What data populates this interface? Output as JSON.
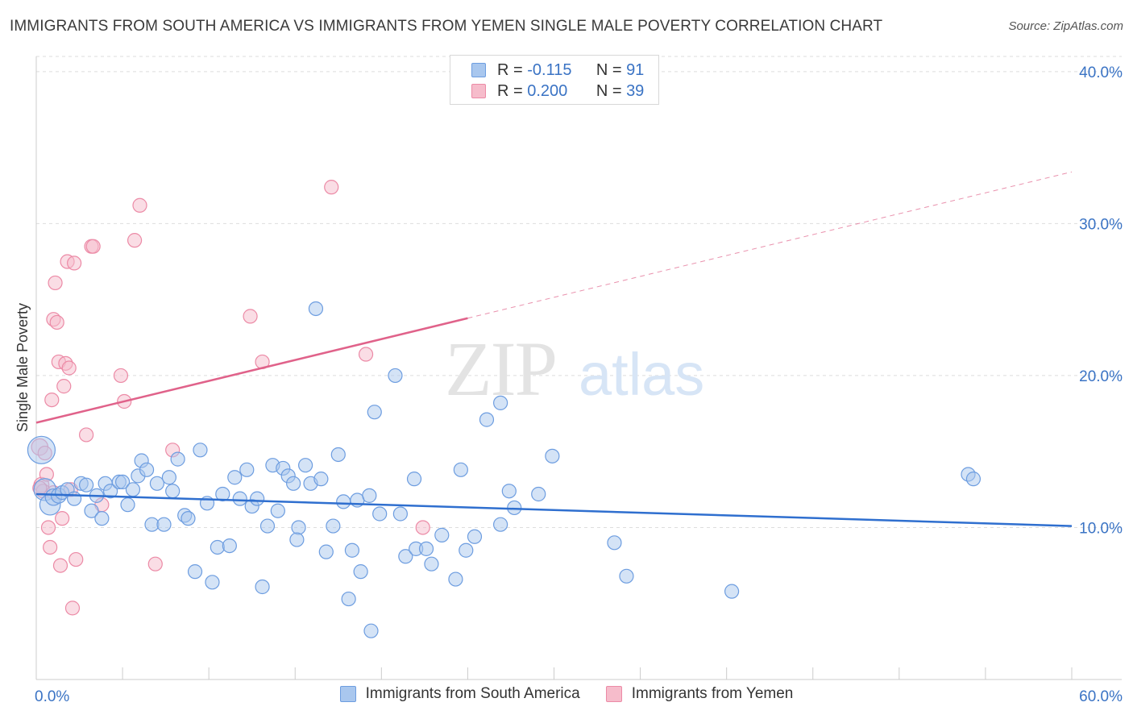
{
  "header": {
    "title": "IMMIGRANTS FROM SOUTH AMERICA VS IMMIGRANTS FROM YEMEN SINGLE MALE POVERTY CORRELATION CHART",
    "source": "Source: ZipAtlas.com"
  },
  "watermark": {
    "zip": "ZIP",
    "atlas": "atlas"
  },
  "legend_top": {
    "rows": [
      {
        "r_label": "R =",
        "r_value": "-0.115",
        "n_label": "N =",
        "n_value": "91"
      },
      {
        "r_label": "R =",
        "r_value": "0.200",
        "n_label": "N =",
        "n_value": "39"
      }
    ]
  },
  "colors": {
    "blue_fill": "#a9c7ee",
    "blue_stroke": "#6d9de0",
    "blue_line": "#2f6fcf",
    "pink_fill": "#f6bccb",
    "pink_stroke": "#ec8aa6",
    "pink_line": "#e0628a",
    "axis_text": "#3a73c4",
    "grid": "#dddddd"
  },
  "chart_data": {
    "type": "scatter",
    "title": "IMMIGRANTS FROM SOUTH AMERICA VS IMMIGRANTS FROM YEMEN SINGLE MALE POVERTY CORRELATION CHART",
    "xlabel": "",
    "ylabel": "Single Male Poverty",
    "xlim": [
      0,
      60
    ],
    "ylim": [
      0,
      41
    ],
    "x_tick_labels": [
      {
        "value": 0,
        "label": "0.0%"
      },
      {
        "value": 60,
        "label": "60.0%"
      }
    ],
    "y_tick_labels": [
      {
        "value": 10,
        "label": "10.0%"
      },
      {
        "value": 20,
        "label": "20.0%"
      },
      {
        "value": 30,
        "label": "30.0%"
      },
      {
        "value": 40,
        "label": "40.0%"
      }
    ],
    "grid": true,
    "legend_position": "bottom",
    "series": [
      {
        "name": "Immigrants from South America",
        "R": -0.115,
        "N": 91,
        "trend": {
          "x": [
            0,
            60
          ],
          "y": [
            12.2,
            10.1
          ],
          "dashed_from": null
        },
        "points": [
          [
            0.3,
            15.1,
            2
          ],
          [
            0.5,
            12.5,
            1.6
          ],
          [
            0.8,
            11.5,
            1.5
          ],
          [
            1.0,
            12.0,
            1.2
          ],
          [
            1.3,
            12.1,
            1.1
          ],
          [
            1.5,
            12.3,
            1
          ],
          [
            1.8,
            12.5,
            1
          ],
          [
            2.2,
            11.9,
            1
          ],
          [
            2.6,
            12.9,
            1
          ],
          [
            2.9,
            12.8,
            1
          ],
          [
            3.2,
            11.1,
            1
          ],
          [
            3.5,
            12.1,
            1
          ],
          [
            3.8,
            10.6,
            1
          ],
          [
            4.0,
            12.9,
            1
          ],
          [
            4.3,
            12.4,
            1
          ],
          [
            4.8,
            13.0,
            1
          ],
          [
            5.0,
            13.0,
            1
          ],
          [
            5.3,
            11.5,
            1
          ],
          [
            5.6,
            12.5,
            1
          ],
          [
            5.9,
            13.4,
            1
          ],
          [
            6.1,
            14.4,
            1
          ],
          [
            6.4,
            13.8,
            1
          ],
          [
            6.7,
            10.2,
            1
          ],
          [
            7.0,
            12.9,
            1
          ],
          [
            7.4,
            10.2,
            1
          ],
          [
            7.7,
            13.3,
            1
          ],
          [
            7.9,
            12.4,
            1
          ],
          [
            8.2,
            14.5,
            1
          ],
          [
            8.6,
            10.8,
            1
          ],
          [
            8.8,
            10.6,
            1
          ],
          [
            9.2,
            7.1,
            1
          ],
          [
            9.5,
            15.1,
            1
          ],
          [
            9.9,
            11.6,
            1
          ],
          [
            10.2,
            6.4,
            1
          ],
          [
            10.5,
            8.7,
            1
          ],
          [
            10.8,
            12.2,
            1
          ],
          [
            11.2,
            8.8,
            1
          ],
          [
            11.5,
            13.3,
            1
          ],
          [
            11.8,
            11.9,
            1
          ],
          [
            12.2,
            13.8,
            1
          ],
          [
            12.5,
            11.4,
            1
          ],
          [
            12.8,
            11.9,
            1
          ],
          [
            13.1,
            6.1,
            1
          ],
          [
            13.4,
            10.1,
            1
          ],
          [
            13.7,
            14.1,
            1
          ],
          [
            14.0,
            11.1,
            1
          ],
          [
            14.3,
            13.9,
            1
          ],
          [
            14.6,
            13.4,
            1
          ],
          [
            14.9,
            12.9,
            1
          ],
          [
            15.2,
            10.0,
            1
          ],
          [
            15.1,
            9.2,
            1
          ],
          [
            15.6,
            14.1,
            1
          ],
          [
            15.9,
            12.9,
            1
          ],
          [
            16.2,
            24.4,
            1
          ],
          [
            16.5,
            13.2,
            1
          ],
          [
            16.8,
            8.4,
            1
          ],
          [
            17.2,
            10.1,
            1
          ],
          [
            17.5,
            14.8,
            1
          ],
          [
            17.8,
            11.7,
            1
          ],
          [
            18.1,
            5.3,
            1
          ],
          [
            18.3,
            8.5,
            1
          ],
          [
            18.6,
            11.8,
            1
          ],
          [
            18.8,
            7.1,
            1
          ],
          [
            19.3,
            12.1,
            1
          ],
          [
            19.6,
            17.6,
            1
          ],
          [
            19.9,
            10.9,
            1
          ],
          [
            20.8,
            20.0,
            1
          ],
          [
            21.1,
            10.9,
            1
          ],
          [
            21.4,
            8.1,
            1
          ],
          [
            21.9,
            13.2,
            1
          ],
          [
            22.0,
            8.6,
            1
          ],
          [
            22.6,
            8.6,
            1
          ],
          [
            22.9,
            7.6,
            1
          ],
          [
            23.5,
            9.5,
            1
          ],
          [
            24.3,
            6.6,
            1
          ],
          [
            24.6,
            13.8,
            1
          ],
          [
            24.9,
            8.5,
            1
          ],
          [
            25.4,
            9.4,
            1
          ],
          [
            26.1,
            17.1,
            1
          ],
          [
            26.9,
            10.2,
            1
          ],
          [
            26.9,
            18.2,
            1
          ],
          [
            27.4,
            12.4,
            1
          ],
          [
            27.7,
            11.3,
            1
          ],
          [
            29.1,
            12.2,
            1
          ],
          [
            29.9,
            14.7,
            1
          ],
          [
            33.5,
            9.0,
            1
          ],
          [
            34.2,
            6.8,
            1
          ],
          [
            40.3,
            5.8,
            1
          ],
          [
            54.0,
            13.5,
            1
          ],
          [
            54.3,
            13.2,
            1
          ],
          [
            19.4,
            3.2,
            1
          ]
        ]
      },
      {
        "name": "Immigrants from Yemen",
        "R": 0.2,
        "N": 39,
        "trend": {
          "x": [
            0,
            60
          ],
          "y": [
            16.9,
            33.4
          ],
          "dashed_from": 25
        },
        "points": [
          [
            0.2,
            15.3,
            1.2
          ],
          [
            0.3,
            12.8,
            1.1
          ],
          [
            0.4,
            12.4,
            1
          ],
          [
            0.6,
            13.5,
            1
          ],
          [
            0.7,
            10.0,
            1
          ],
          [
            0.8,
            8.7,
            1
          ],
          [
            0.9,
            18.4,
            1
          ],
          [
            1.0,
            23.7,
            1
          ],
          [
            1.1,
            26.1,
            1
          ],
          [
            1.2,
            23.5,
            1
          ],
          [
            1.3,
            20.9,
            1
          ],
          [
            1.4,
            7.5,
            1
          ],
          [
            1.5,
            10.6,
            1
          ],
          [
            1.6,
            19.3,
            1
          ],
          [
            1.7,
            20.8,
            1
          ],
          [
            1.8,
            27.5,
            1
          ],
          [
            1.9,
            20.5,
            1
          ],
          [
            2.0,
            12.5,
            1
          ],
          [
            2.1,
            4.7,
            1
          ],
          [
            2.2,
            27.4,
            1
          ],
          [
            2.3,
            7.9,
            1
          ],
          [
            2.9,
            16.1,
            1
          ],
          [
            3.2,
            28.5,
            1
          ],
          [
            3.3,
            28.5,
            1
          ],
          [
            3.8,
            11.5,
            1
          ],
          [
            4.9,
            20.0,
            1
          ],
          [
            5.1,
            18.3,
            1
          ],
          [
            5.7,
            28.9,
            1
          ],
          [
            6.0,
            31.2,
            1
          ],
          [
            6.9,
            7.6,
            1
          ],
          [
            7.9,
            15.1,
            1
          ],
          [
            12.4,
            23.9,
            1
          ],
          [
            13.1,
            20.9,
            1
          ],
          [
            17.1,
            32.4,
            1
          ],
          [
            19.1,
            21.4,
            1
          ],
          [
            22.4,
            10.0,
            1
          ],
          [
            0.5,
            14.9,
            1
          ],
          [
            0.2,
            12.6,
            1
          ],
          [
            1.0,
            12.3,
            1
          ]
        ]
      }
    ]
  }
}
